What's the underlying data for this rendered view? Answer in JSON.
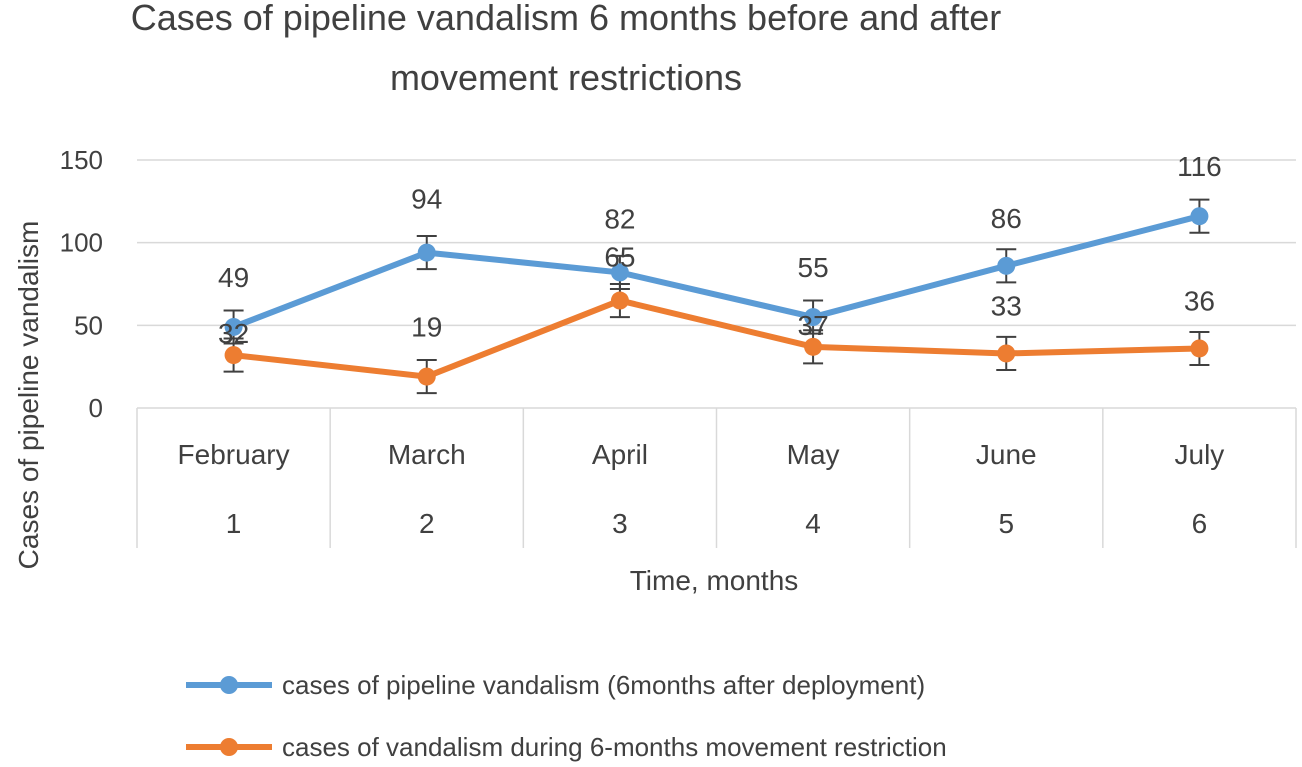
{
  "chart_data": {
    "type": "line",
    "title_lines": [
      "Cases of pipeline vandalism 6 months before and after",
      "movement  restrictions"
    ],
    "xlabel": "Time, months",
    "ylabel": "Cases of pipeline vandalism",
    "ylim": [
      0,
      150
    ],
    "yticks": [
      0,
      50,
      100,
      150
    ],
    "categories": [
      "February",
      "March",
      "April",
      "May",
      "June",
      "July"
    ],
    "category_numbers": [
      "1",
      "2",
      "3",
      "4",
      "5",
      "6"
    ],
    "grid": true,
    "error_bars": true,
    "error_bar_amount": 10,
    "legend_position": "bottom",
    "series": [
      {
        "name": "cases of pipeline vandalism (6months after deployment)",
        "color": "#5b9bd5",
        "values": [
          49,
          94,
          82,
          55,
          86,
          116
        ]
      },
      {
        "name": "cases of vandalism during 6-months movement restriction",
        "color": "#ed7d31",
        "values": [
          32,
          19,
          65,
          37,
          33,
          36
        ]
      }
    ]
  }
}
